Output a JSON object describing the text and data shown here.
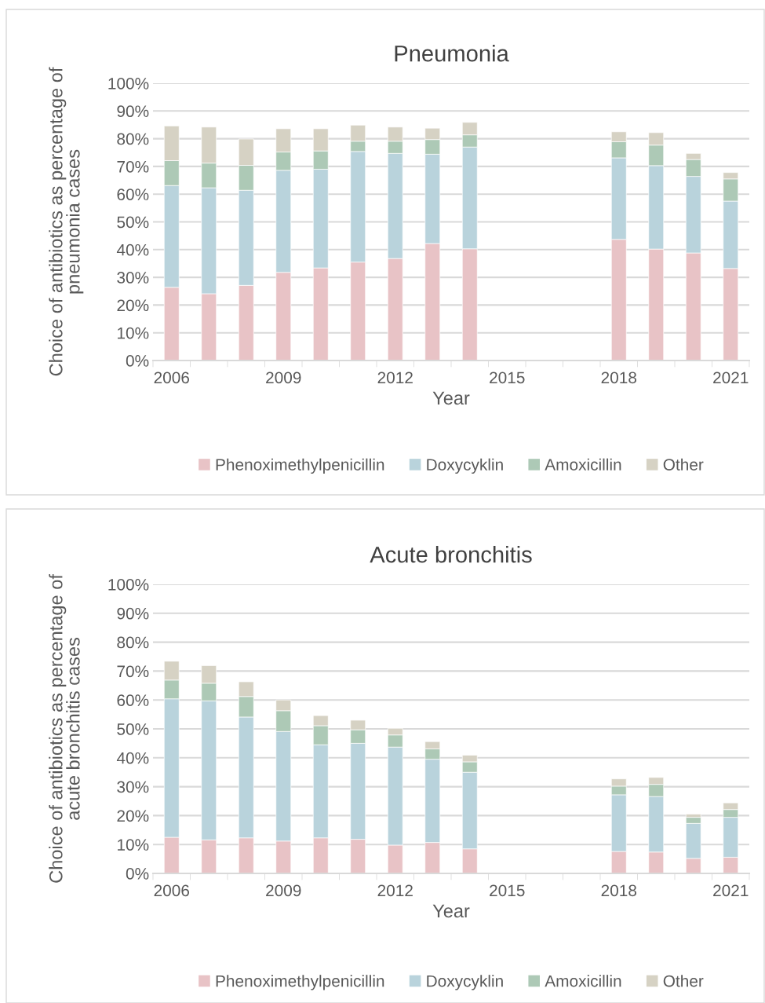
{
  "chart_data": [
    {
      "type": "bar",
      "title": "Pneumonia",
      "xlabel": "Year",
      "ylabel": "Choice of antibiotics as percentage of\npneumonia cases",
      "stacked": true,
      "legend": "bottom",
      "grid": "y",
      "categories": [
        "2006",
        null,
        null,
        "2009",
        null,
        null,
        "2012",
        null,
        null,
        "2015",
        null,
        null,
        "2018",
        null,
        null,
        "2021"
      ],
      "ylim": [
        0,
        100
      ],
      "yticks": [
        {
          "value": 0,
          "label": "0%"
        },
        {
          "value": 10,
          "label": "10%"
        },
        {
          "value": 20,
          "label": "20%"
        },
        {
          "value": 30,
          "label": "30%"
        },
        {
          "value": 40,
          "label": "40%"
        },
        {
          "value": 50,
          "label": "50%"
        },
        {
          "value": 60,
          "label": "60%"
        },
        {
          "value": 70,
          "label": "70%"
        },
        {
          "value": 80,
          "label": "80%"
        },
        {
          "value": 90,
          "label": "90%"
        },
        {
          "value": 100,
          "label": "100%"
        }
      ],
      "series": [
        {
          "name": "Phenoximethylpenicillin",
          "color": "#e8c3c6",
          "values": [
            26.4,
            24.1,
            27.1,
            31.8,
            33.4,
            35.5,
            36.8,
            42.2,
            40.3,
            null,
            null,
            null,
            43.7,
            40.2,
            38.8,
            33.2
          ]
        },
        {
          "name": "Doxycyklin",
          "color": "#b9d3dc",
          "values": [
            36.7,
            38.2,
            34.3,
            36.8,
            35.6,
            39.9,
            37.9,
            32.2,
            36.7,
            null,
            null,
            null,
            29.4,
            30.1,
            27.6,
            24.3
          ]
        },
        {
          "name": "Amoxicillin",
          "color": "#adc9b6",
          "values": [
            9.0,
            8.9,
            9.0,
            6.6,
            6.6,
            3.7,
            4.4,
            5.3,
            4.4,
            null,
            null,
            null,
            5.8,
            7.4,
            6.1,
            8.0
          ]
        },
        {
          "name": "Other",
          "color": "#d6d2c4",
          "values": [
            12.5,
            13.0,
            9.5,
            8.4,
            8.0,
            5.8,
            5.1,
            4.1,
            4.5,
            null,
            null,
            null,
            3.6,
            4.5,
            2.2,
            2.3
          ]
        }
      ]
    },
    {
      "type": "bar",
      "title": "Acute bronchitis",
      "xlabel": "Year",
      "ylabel": "Choice of antibiotics as percentage of\nacute bronchitis cases",
      "stacked": true,
      "legend": "bottom",
      "grid": "y",
      "categories": [
        "2006",
        null,
        null,
        "2009",
        null,
        null,
        "2012",
        null,
        null,
        "2015",
        null,
        null,
        "2018",
        null,
        null,
        "2021"
      ],
      "ylim": [
        0,
        100
      ],
      "yticks": [
        {
          "value": 0,
          "label": "0%"
        },
        {
          "value": 10,
          "label": "10%"
        },
        {
          "value": 20,
          "label": "20%"
        },
        {
          "value": 30,
          "label": "30%"
        },
        {
          "value": 40,
          "label": "40%"
        },
        {
          "value": 50,
          "label": "50%"
        },
        {
          "value": 60,
          "label": "60%"
        },
        {
          "value": 70,
          "label": "70%"
        },
        {
          "value": 80,
          "label": "80%"
        },
        {
          "value": 90,
          "label": "90%"
        },
        {
          "value": 100,
          "label": "100%"
        }
      ],
      "series": [
        {
          "name": "Phenoximethylpenicillin",
          "color": "#e8c3c6",
          "values": [
            12.5,
            11.6,
            12.3,
            11.2,
            12.3,
            11.8,
            9.8,
            10.7,
            8.5,
            null,
            null,
            null,
            7.6,
            7.4,
            5.2,
            5.6
          ]
        },
        {
          "name": "Doxycyklin",
          "color": "#b9d3dc",
          "values": [
            47.9,
            48.1,
            41.8,
            37.9,
            32.2,
            33.2,
            33.9,
            28.8,
            26.5,
            null,
            null,
            null,
            19.6,
            19.2,
            12.1,
            13.8
          ]
        },
        {
          "name": "Amoxicillin",
          "color": "#adc9b6",
          "values": [
            6.5,
            6.1,
            7.1,
            7.2,
            6.6,
            4.7,
            4.2,
            3.6,
            3.6,
            null,
            null,
            null,
            3.0,
            4.2,
            2.1,
            2.7
          ]
        },
        {
          "name": "Other",
          "color": "#d6d2c4",
          "values": [
            6.5,
            6.1,
            5.1,
            3.7,
            3.5,
            3.3,
            2.3,
            2.5,
            2.3,
            null,
            null,
            null,
            2.5,
            2.4,
            1.1,
            2.3
          ]
        }
      ]
    }
  ]
}
